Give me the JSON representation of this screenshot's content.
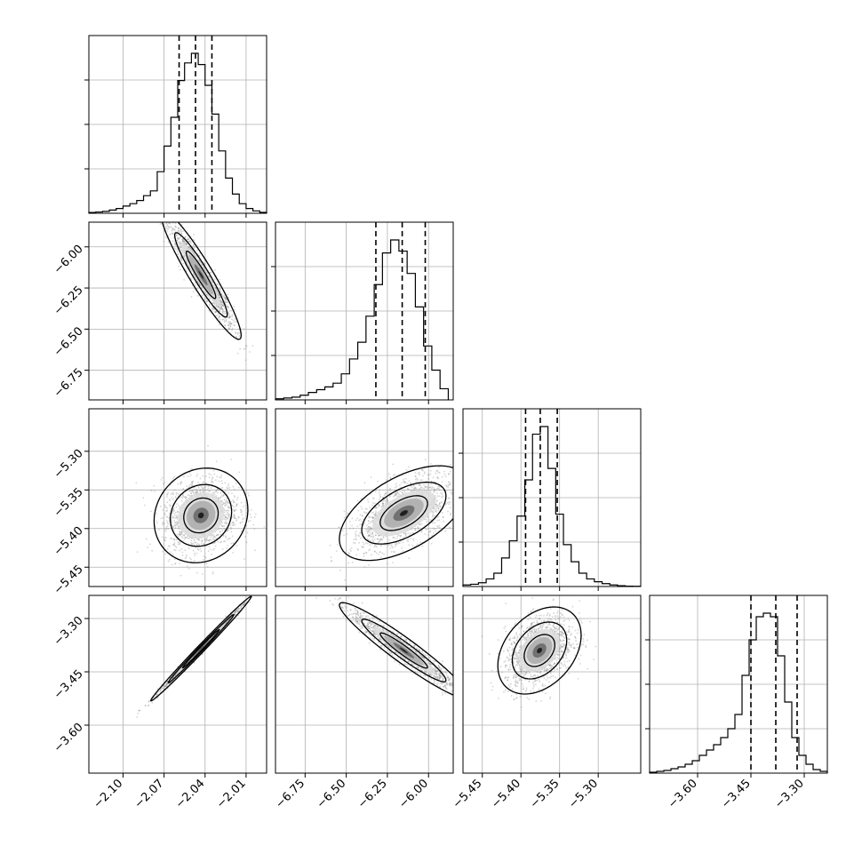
{
  "chart_data": {
    "type": "corner",
    "parameters": [
      {
        "range": [
          -2.125,
          -1.995
        ],
        "ticks": [
          -2.1,
          -2.07,
          -2.04,
          -2.01
        ],
        "tick_labels": [
          "−2.10",
          "−2.07",
          "−2.04",
          "−2.01"
        ],
        "quantiles": [
          -2.059,
          -2.047,
          -2.035
        ],
        "hist_x": [
          -2.125,
          -2.12,
          -2.115,
          -2.11,
          -2.105,
          -2.1,
          -2.095,
          -2.09,
          -2.085,
          -2.08,
          -2.075,
          -2.07,
          -2.065,
          -2.06,
          -2.055,
          -2.05,
          -2.045,
          -2.04,
          -2.035,
          -2.03,
          -2.025,
          -2.02,
          -2.015,
          -2.01,
          -2.005,
          -2.0,
          -1.995
        ],
        "hist_counts": [
          0.5,
          0.8,
          1.2,
          2,
          3,
          4.5,
          6,
          8,
          11,
          14,
          26,
          42,
          60,
          83,
          94,
          100,
          93,
          80,
          62,
          39,
          22,
          12,
          6,
          3,
          1.5,
          0.6
        ]
      },
      {
        "range": [
          -6.93,
          -5.85
        ],
        "ticks": [
          -6.75,
          -6.5,
          -6.25,
          -6.0
        ],
        "tick_labels": [
          "−6.75",
          "−6.50",
          "−6.25",
          "−6.00"
        ],
        "quantiles": [
          -6.32,
          -6.16,
          -6.02
        ],
        "hist_x": [
          -6.93,
          -6.88,
          -6.83,
          -6.78,
          -6.73,
          -6.68,
          -6.63,
          -6.58,
          -6.53,
          -6.48,
          -6.43,
          -6.38,
          -6.33,
          -6.28,
          -6.23,
          -6.18,
          -6.13,
          -6.08,
          -6.03,
          -5.98,
          -5.93,
          -5.88
        ],
        "hist_counts": [
          0.6,
          1,
          1.5,
          2.5,
          4,
          5.5,
          7,
          9,
          14,
          22,
          31,
          45,
          62,
          79,
          86,
          80,
          68,
          50,
          29,
          16,
          6
        ]
      },
      {
        "range": [
          -5.475,
          -5.245
        ],
        "ticks": [
          -5.45,
          -5.4,
          -5.35,
          -5.3
        ],
        "tick_labels": [
          "−5.45",
          "−5.40",
          "−5.35",
          "−5.30"
        ],
        "quantiles": [
          -5.394,
          -5.375,
          -5.353
        ],
        "hist_x": [
          -5.475,
          -5.465,
          -5.455,
          -5.445,
          -5.435,
          -5.425,
          -5.415,
          -5.405,
          -5.395,
          -5.385,
          -5.375,
          -5.365,
          -5.355,
          -5.345,
          -5.335,
          -5.325,
          -5.315,
          -5.305,
          -5.295,
          -5.285,
          -5.275,
          -5.265,
          -5.255,
          -5.245
        ],
        "hist_counts": [
          0.8,
          1.2,
          2,
          4,
          7,
          15,
          24,
          37,
          56,
          80,
          84,
          62,
          38,
          22,
          13,
          7,
          4,
          2.5,
          1.5,
          0.8,
          0.4,
          0.2,
          0.1
        ]
      },
      {
        "range": [
          -3.735,
          -3.235
        ],
        "ticks": [
          -3.6,
          -3.45,
          -3.3
        ],
        "tick_labels": [
          "−3.60",
          "−3.45",
          "−3.30"
        ],
        "quantiles": [
          -3.45,
          -3.38,
          -3.32
        ],
        "hist_x": [
          -3.735,
          -3.715,
          -3.695,
          -3.675,
          -3.655,
          -3.635,
          -3.615,
          -3.595,
          -3.575,
          -3.555,
          -3.535,
          -3.515,
          -3.495,
          -3.475,
          -3.455,
          -3.435,
          -3.415,
          -3.395,
          -3.375,
          -3.355,
          -3.335,
          -3.315,
          -3.295,
          -3.275,
          -3.255,
          -3.235
        ],
        "hist_counts": [
          0.5,
          1,
          1.5,
          2.5,
          3.5,
          5,
          7,
          10,
          13,
          16,
          20,
          25,
          33,
          55,
          75,
          88,
          90,
          88,
          66,
          40,
          20,
          10,
          5,
          2,
          1
        ]
      }
    ],
    "pairs": [
      {
        "x": 0,
        "y": 1,
        "center": [
          -2.043,
          -6.17
        ],
        "spread": [
          0.012,
          0.16
        ],
        "corr": -0.94
      },
      {
        "x": 0,
        "y": 2,
        "center": [
          -2.043,
          -5.383
        ],
        "spread": [
          0.014,
          0.025
        ],
        "corr": 0.12
      },
      {
        "x": 1,
        "y": 2,
        "center": [
          -6.15,
          -5.38
        ],
        "spread": [
          0.16,
          0.025
        ],
        "corr": 0.55
      },
      {
        "x": 0,
        "y": 3,
        "center": [
          -2.043,
          -3.385
        ],
        "spread": [
          0.015,
          0.06
        ],
        "corr": 0.995
      },
      {
        "x": 1,
        "y": 3,
        "center": [
          -6.15,
          -3.39
        ],
        "spread": [
          0.16,
          0.055
        ],
        "corr": -0.95
      },
      {
        "x": 2,
        "y": 3,
        "center": [
          -5.376,
          -3.39
        ],
        "spread": [
          0.022,
          0.05
        ],
        "corr": 0.35
      }
    ],
    "grid": true,
    "colors": {
      "line": "#000000",
      "grid": "#b0b0b0",
      "density": "#555555"
    }
  }
}
